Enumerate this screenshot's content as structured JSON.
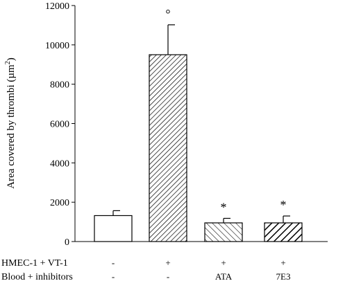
{
  "chart_data": {
    "type": "bar",
    "ylabel": "Area covered by thrombi (µm",
    "ylabel_sup": "2",
    "ylabel_close": ")",
    "ylim": [
      0,
      12000
    ],
    "yticks": [
      0,
      2000,
      4000,
      6000,
      8000,
      10000,
      12000
    ],
    "categories": [
      {
        "values": [
          "-",
          "-"
        ]
      },
      {
        "values": [
          "+",
          "-"
        ]
      },
      {
        "values": [
          "+",
          "ATA"
        ]
      },
      {
        "values": [
          "+",
          "7E3"
        ]
      }
    ],
    "row_labels": [
      "HMEC-1 + VT-1",
      "Blood + inhibitors"
    ],
    "series": [
      {
        "values": [
          1320,
          9500,
          950,
          950
        ],
        "errors": [
          250,
          1520,
          230,
          350
        ],
        "annotations": [
          "",
          "°",
          "*",
          "*"
        ],
        "patterns": [
          "none",
          "hatch-dense-right",
          "hatch-left",
          "hatch-bold-right"
        ]
      }
    ]
  }
}
